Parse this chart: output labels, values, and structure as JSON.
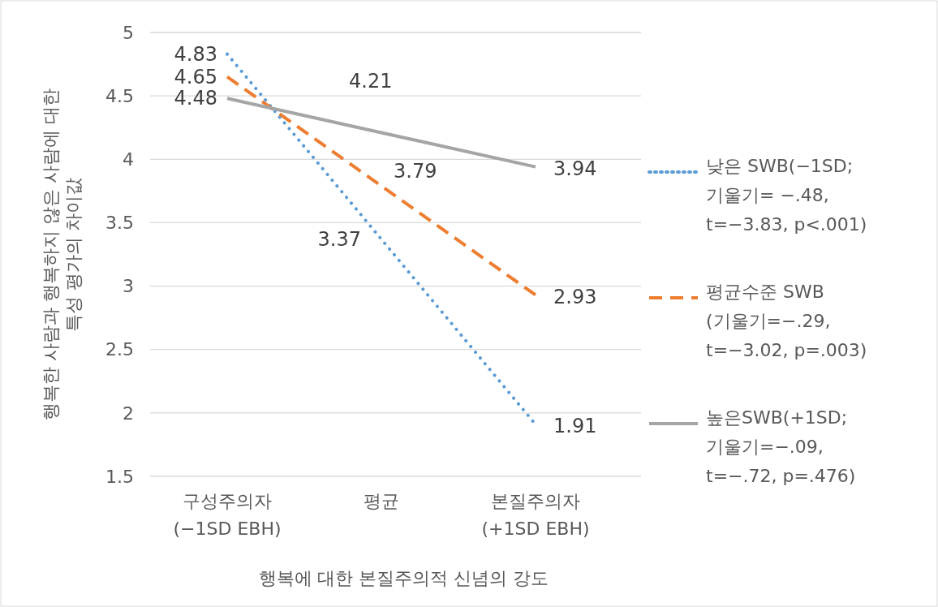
{
  "chart_data": {
    "type": "line",
    "xlabel": "행복에 대한 본질주의적 신념의 강도",
    "ylabel": "행복한 사람과 행복하지 않은 사람에 대한 특성 평가의 차이값",
    "categories": [
      "구성주의자\n(−1SD EBH)",
      "평균",
      "본질주의자\n(+1SD EBH)"
    ],
    "series": [
      {
        "name": "낮은 SWB(−1SD; 기울기= −.48, t=−3.83, p<.001)",
        "color": "#5b9bd5",
        "line_style": "dotted",
        "values": [
          4.83,
          3.37,
          1.91
        ]
      },
      {
        "name": "평균수준 SWB (기울기=−.29, t=−3.02, p=.003)",
        "color": "#ed7d31",
        "line_style": "dashed",
        "values": [
          4.65,
          3.79,
          2.93
        ]
      },
      {
        "name": "높은SWB(+1SD; 기울기=−.09, t=−.72, p=.476)",
        "color": "#a5a5a5",
        "line_style": "solid",
        "values": [
          4.48,
          4.21,
          3.94
        ]
      }
    ],
    "ylim": [
      1.5,
      5
    ],
    "yticks": [
      1.5,
      2,
      2.5,
      3,
      3.5,
      4,
      4.5,
      5
    ],
    "grid": "y",
    "legend": "right",
    "data_labels": true
  }
}
